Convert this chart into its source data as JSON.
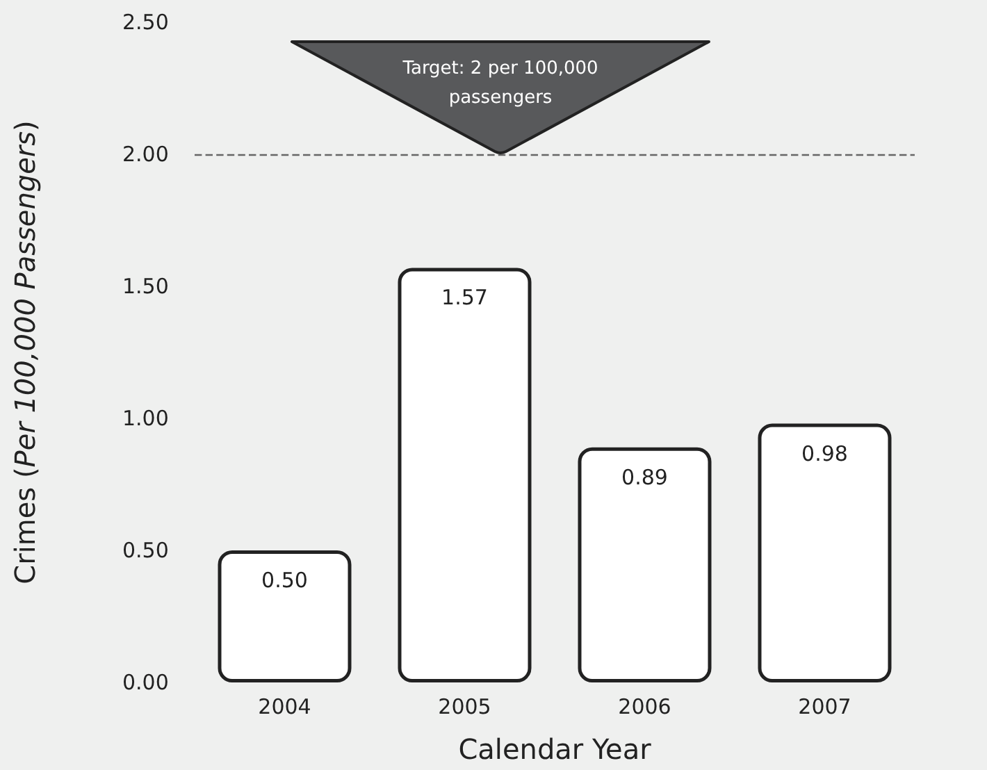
{
  "chart_data": {
    "type": "bar",
    "xlabel": "Calendar Year",
    "ylabel": "Crimes (Per 100,000 Passengers)",
    "categories": [
      "2004",
      "2005",
      "2006",
      "2007"
    ],
    "values": [
      0.5,
      1.57,
      0.89,
      0.98
    ],
    "color": "#ffffff",
    "value_labels": [
      "0.50",
      "1.57",
      "0.89",
      "0.98"
    ],
    "ylim": [
      0,
      2.5
    ],
    "yticks": [
      {
        "value": 0,
        "label": "0.00"
      },
      {
        "value": 0.5,
        "label": "0.50"
      },
      {
        "value": 1,
        "label": "1.00"
      },
      {
        "value": 1.5,
        "label": "1.50"
      },
      {
        "value": 2,
        "label": "2.00"
      },
      {
        "value": 2.5,
        "label": "2.50"
      }
    ],
    "ref_lines": [
      {
        "axis": "y",
        "value": 2,
        "label": "Target: 2 per 100,000 passengers",
        "color": "#666666",
        "line_style": "dashed"
      }
    ],
    "grid": false
  }
}
